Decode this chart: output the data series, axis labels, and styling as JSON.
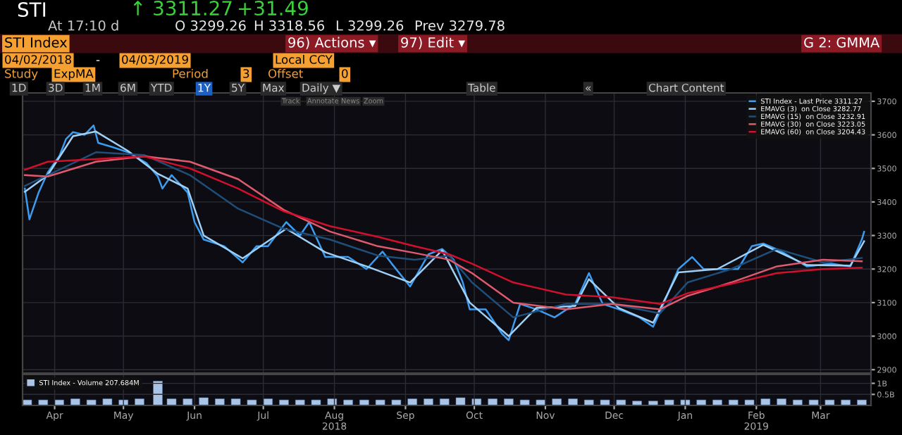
{
  "chart_data": [
    {
      "type": "line",
      "title": null,
      "annotations": [
        "STI",
        "↑ 3311.27",
        "+31.49",
        "At 17:10 d",
        "O 3299.26",
        "H 3318.56",
        "L 3299.26",
        "Prev 3279.78",
        "STI Index",
        "96) Actions ▾",
        "97) Edit ▾",
        "G 2: GMMA",
        "04/02/2018",
        "-",
        "04/03/2019",
        "Local CCY",
        "Study",
        "ExpMA",
        "Period",
        "3",
        "Offset",
        "0",
        "1D",
        "3D",
        "1M",
        "6M",
        "YTD",
        "1Y",
        "5Y",
        "Max",
        "Daily ▼",
        "Table",
        "«",
        "Chart Content",
        "Track",
        "Annotate",
        "News",
        "Zoom"
      ],
      "series": [
        {
          "name": "STI Index - Last Price 3311.27",
          "color": "#3d9cf0",
          "x": [
            "2018-04-02",
            "2018-04-04",
            "2018-04-08",
            "2018-04-12",
            "2018-04-17",
            "2018-04-20",
            "2018-04-23",
            "2018-04-28",
            "2018-05-02",
            "2018-05-04",
            "2018-05-10",
            "2018-05-17",
            "2018-05-25",
            "2018-05-30",
            "2018-06-01",
            "2018-06-05",
            "2018-06-12",
            "2018-06-15",
            "2018-06-19",
            "2018-06-28",
            "2018-07-06",
            "2018-07-12",
            "2018-07-17",
            "2018-07-25",
            "2018-07-31",
            "2018-08-04",
            "2018-08-11",
            "2018-08-21",
            "2018-08-29",
            "2018-09-05",
            "2018-09-09",
            "2018-09-17",
            "2018-09-25",
            "2018-10-01",
            "2018-10-06",
            "2018-10-10",
            "2018-10-13",
            "2018-10-20",
            "2018-10-27",
            "2018-10-30",
            "2018-11-04",
            "2018-11-11",
            "2018-11-19",
            "2018-11-28",
            "2018-12-04",
            "2018-12-10",
            "2018-12-17",
            "2018-12-26",
            "2019-01-01",
            "2019-01-07",
            "2019-01-12",
            "2019-01-18",
            "2019-01-23",
            "2019-01-29",
            "2019-02-07",
            "2019-02-13",
            "2019-02-18",
            "2019-02-25",
            "2019-03-02",
            "2019-03-09",
            "2019-03-20",
            "2019-03-28",
            "2019-04-02",
            "2019-04-03"
          ],
          "values": [
            3440,
            3348,
            3428,
            3488,
            3536,
            3588,
            3608,
            3600,
            3628,
            3576,
            3564,
            3548,
            3516,
            3476,
            3440,
            3480,
            3428,
            3340,
            3288,
            3268,
            3220,
            3268,
            3268,
            3340,
            3300,
            3340,
            3236,
            3236,
            3200,
            3252,
            3216,
            3148,
            3244,
            3260,
            3228,
            3160,
            3080,
            3080,
            3008,
            2988,
            3096,
            3080,
            3056,
            3096,
            3188,
            3096,
            3080,
            3056,
            3028,
            3120,
            3200,
            3236,
            3200,
            3200,
            3200,
            3268,
            3276,
            3256,
            3236,
            3208,
            3216,
            3208,
            3288,
            3311
          ]
        },
        {
          "name": "EMAVG (3)  on Close 3282.77",
          "color": "#9fd0f5",
          "x": [
            "2018-04-02",
            "2018-04-12",
            "2018-04-23",
            "2018-05-03",
            "2018-05-17",
            "2018-05-30",
            "2018-06-12",
            "2018-06-19",
            "2018-07-06",
            "2018-07-25",
            "2018-08-11",
            "2018-08-29",
            "2018-09-17",
            "2018-10-01",
            "2018-10-13",
            "2018-10-30",
            "2018-11-11",
            "2018-11-28",
            "2018-12-04",
            "2018-12-17",
            "2019-01-01",
            "2019-01-12",
            "2019-01-29",
            "2019-02-18",
            "2019-03-09",
            "2019-03-28",
            "2019-04-03"
          ],
          "values": [
            3430,
            3480,
            3596,
            3610,
            3552,
            3484,
            3440,
            3300,
            3232,
            3320,
            3250,
            3208,
            3160,
            3256,
            3100,
            3000,
            3084,
            3090,
            3170,
            3084,
            3040,
            3190,
            3200,
            3272,
            3212,
            3210,
            3283
          ]
        },
        {
          "name": "EMAVG (15)  on Close 3232.91",
          "color": "#1f4e79",
          "x": [
            "2018-04-02",
            "2018-04-12",
            "2018-05-03",
            "2018-05-24",
            "2018-06-13",
            "2018-07-04",
            "2018-07-24",
            "2018-08-13",
            "2018-09-03",
            "2018-09-19",
            "2018-10-04",
            "2018-10-14",
            "2018-11-01",
            "2018-11-24",
            "2018-12-14",
            "2019-01-04",
            "2019-01-16",
            "2019-02-04",
            "2019-02-24",
            "2019-03-16",
            "2019-04-02"
          ],
          "values": [
            3448,
            3480,
            3548,
            3540,
            3480,
            3380,
            3320,
            3288,
            3240,
            3228,
            3240,
            3160,
            3056,
            3096,
            3096,
            3068,
            3160,
            3200,
            3260,
            3220,
            3233
          ]
        },
        {
          "name": "EMAVG (30)  on Close 3223.05",
          "color": "#e05a6e",
          "x": [
            "2018-04-02",
            "2018-04-12",
            "2018-05-03",
            "2018-05-24",
            "2018-06-13",
            "2018-07-04",
            "2018-07-24",
            "2018-08-13",
            "2018-09-03",
            "2018-09-19",
            "2018-10-04",
            "2018-10-14",
            "2018-11-01",
            "2018-11-24",
            "2018-12-14",
            "2019-01-04",
            "2019-01-16",
            "2019-02-04",
            "2019-02-24",
            "2019-03-16",
            "2019-04-02"
          ],
          "values": [
            3480,
            3476,
            3520,
            3536,
            3520,
            3468,
            3376,
            3312,
            3268,
            3248,
            3228,
            3188,
            3100,
            3080,
            3096,
            3080,
            3120,
            3160,
            3208,
            3228,
            3223
          ]
        },
        {
          "name": "EMAVG (60)  on Close 3204.43",
          "color": "#d0102c",
          "x": [
            "2018-04-02",
            "2018-04-12",
            "2018-05-03",
            "2018-05-24",
            "2018-06-13",
            "2018-07-04",
            "2018-07-24",
            "2018-08-13",
            "2018-09-03",
            "2018-09-19",
            "2018-10-04",
            "2018-10-14",
            "2018-11-01",
            "2018-11-24",
            "2018-12-14",
            "2019-01-04",
            "2019-01-16",
            "2019-02-04",
            "2019-02-24",
            "2019-03-16",
            "2019-04-02"
          ],
          "values": [
            3496,
            3520,
            3528,
            3536,
            3500,
            3440,
            3372,
            3328,
            3296,
            3268,
            3244,
            3216,
            3160,
            3124,
            3116,
            3096,
            3128,
            3156,
            3188,
            3200,
            3204
          ]
        }
      ],
      "xlim": [
        "2018-04-01",
        "2019-04-06"
      ],
      "xticks": [
        {
          "value": "2018-04-15",
          "label": null
        },
        {
          "value": "2018-05-15",
          "label": null
        },
        {
          "value": "2018-06-15",
          "label": null
        },
        {
          "value": "2018-07-15",
          "label": null
        },
        {
          "value": "2018-08-15",
          "label": null
        },
        {
          "value": "2018-09-15",
          "label": null
        },
        {
          "value": "2018-10-15",
          "label": null
        },
        {
          "value": "2018-11-15",
          "label": null
        },
        {
          "value": "2018-12-15",
          "label": null
        },
        {
          "value": "2019-01-15",
          "label": null
        },
        {
          "value": "2019-02-15",
          "label": null
        },
        {
          "value": "2019-03-15",
          "label": null
        }
      ],
      "ylim": [
        2890,
        3725
      ],
      "yticks": [
        2900,
        3000,
        3100,
        3200,
        3300,
        3400,
        3500,
        3600,
        3700
      ],
      "tick_labels": "y",
      "grid": true,
      "legend": "top right",
      "line_style": "solid",
      "marker": "none"
    },
    {
      "type": "bar",
      "series": [
        {
          "name": "STI Index - Volume 207.684M",
          "color": "#a9c4e4",
          "x": [
            "2018-04-03",
            "2018-04-10",
            "2018-04-17",
            "2018-04-24",
            "2018-05-01",
            "2018-05-08",
            "2018-05-15",
            "2018-05-22",
            "2018-05-30",
            "2018-06-05",
            "2018-06-12",
            "2018-06-19",
            "2018-06-26",
            "2018-07-03",
            "2018-07-10",
            "2018-07-17",
            "2018-07-24",
            "2018-07-31",
            "2018-08-07",
            "2018-08-14",
            "2018-08-21",
            "2018-08-28",
            "2018-09-04",
            "2018-09-11",
            "2018-09-18",
            "2018-09-25",
            "2018-10-02",
            "2018-10-09",
            "2018-10-16",
            "2018-10-23",
            "2018-10-30",
            "2018-11-06",
            "2018-11-13",
            "2018-11-20",
            "2018-11-27",
            "2018-12-04",
            "2018-12-11",
            "2018-12-18",
            "2018-12-25",
            "2019-01-01",
            "2019-01-08",
            "2019-01-15",
            "2019-01-22",
            "2019-01-29",
            "2019-02-05",
            "2019-02-12",
            "2019-02-19",
            "2019-02-26",
            "2019-03-05",
            "2019-03-12",
            "2019-03-19",
            "2019-03-26",
            "2019-04-02"
          ],
          "values": [
            0.25,
            0.25,
            0.25,
            0.3,
            0.25,
            0.3,
            0.25,
            0.3,
            1.1,
            0.3,
            0.3,
            0.35,
            0.3,
            0.3,
            0.25,
            0.3,
            0.25,
            0.25,
            0.25,
            0.3,
            0.25,
            0.25,
            0.25,
            0.25,
            0.3,
            0.3,
            0.3,
            0.35,
            0.3,
            0.3,
            0.3,
            0.25,
            0.25,
            0.3,
            0.3,
            0.25,
            0.25,
            0.25,
            0.2,
            0.2,
            0.25,
            0.25,
            0.25,
            0.25,
            0.25,
            0.25,
            0.3,
            0.3,
            0.25,
            0.25,
            0.25,
            0.25,
            0.25
          ]
        }
      ],
      "xlim": [
        "2018-04-01",
        "2019-04-06"
      ],
      "xticks": [
        {
          "value": "2018-04-15",
          "label": "Apr"
        },
        {
          "value": "2018-05-15",
          "label": "May"
        },
        {
          "value": "2018-06-15",
          "label": "Jun"
        },
        {
          "value": "2018-07-15",
          "label": "Jul"
        },
        {
          "value": "2018-08-15",
          "label": "Aug\n2018"
        },
        {
          "value": "2018-09-15",
          "label": "Sep"
        },
        {
          "value": "2018-10-15",
          "label": "Oct"
        },
        {
          "value": "2018-11-15",
          "label": "Nov"
        },
        {
          "value": "2018-12-15",
          "label": "Dec"
        },
        {
          "value": "2019-01-15",
          "label": "Jan"
        },
        {
          "value": "2019-02-15",
          "label": "Feb\n2019"
        },
        {
          "value": "2019-03-15",
          "label": "Mar"
        }
      ],
      "ylim": [
        0,
        1.4
      ],
      "yticks": [
        {
          "value": 0.5,
          "label": "0.5B"
        },
        {
          "value": 1,
          "label": "1B"
        }
      ],
      "grid": true,
      "legend": "top left"
    }
  ]
}
